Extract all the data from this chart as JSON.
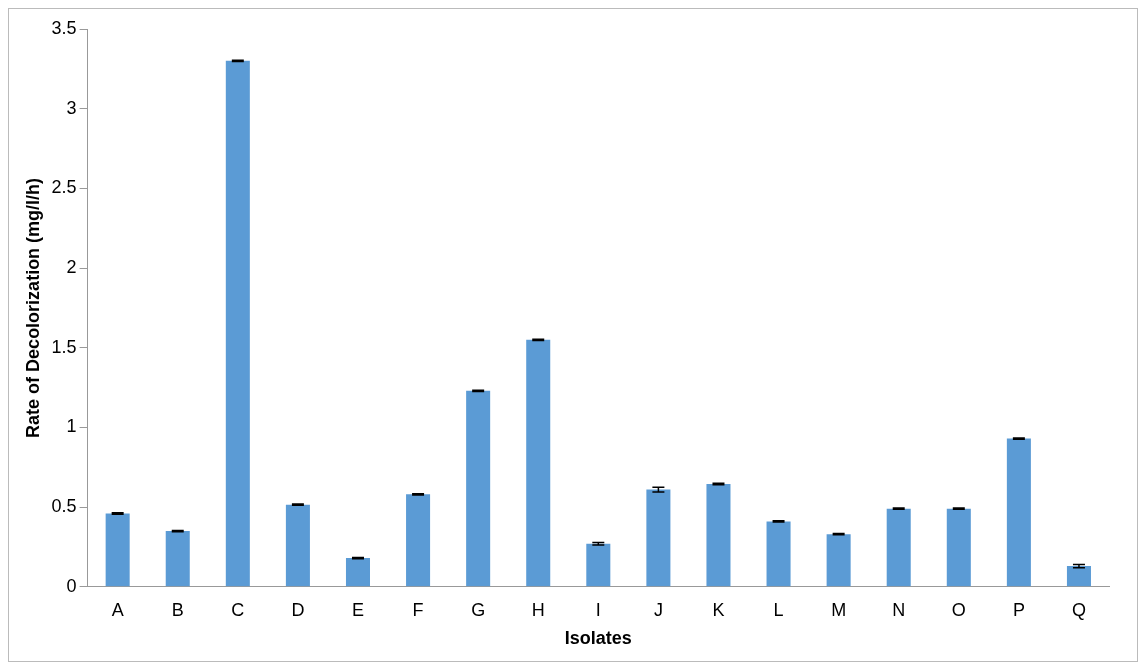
{
  "chart_data": {
    "type": "bar",
    "xlabel": "Isolates",
    "ylabel": "Rate of Decolorization (mg/l/h)",
    "categories": [
      "A",
      "B",
      "C",
      "D",
      "E",
      "F",
      "G",
      "H",
      "I",
      "J",
      "K",
      "L",
      "M",
      "N",
      "O",
      "P",
      "Q"
    ],
    "values": [
      0.46,
      0.35,
      3.3,
      0.515,
      0.18,
      0.58,
      1.23,
      1.55,
      0.27,
      0.61,
      0.645,
      0.41,
      0.33,
      0.49,
      0.49,
      0.93,
      0.13
    ],
    "errors": [
      0.004,
      0.004,
      0.004,
      0.004,
      0.004,
      0.004,
      0.004,
      0.004,
      0.008,
      0.015,
      0.005,
      0.004,
      0.004,
      0.004,
      0.004,
      0.004,
      0.01
    ],
    "color": "#5b9bd5",
    "ylim": [
      0,
      3.5
    ],
    "yticks": [
      0,
      0.5,
      1,
      1.5,
      2,
      2.5,
      3,
      3.5
    ],
    "grid": false,
    "legend": false
  }
}
